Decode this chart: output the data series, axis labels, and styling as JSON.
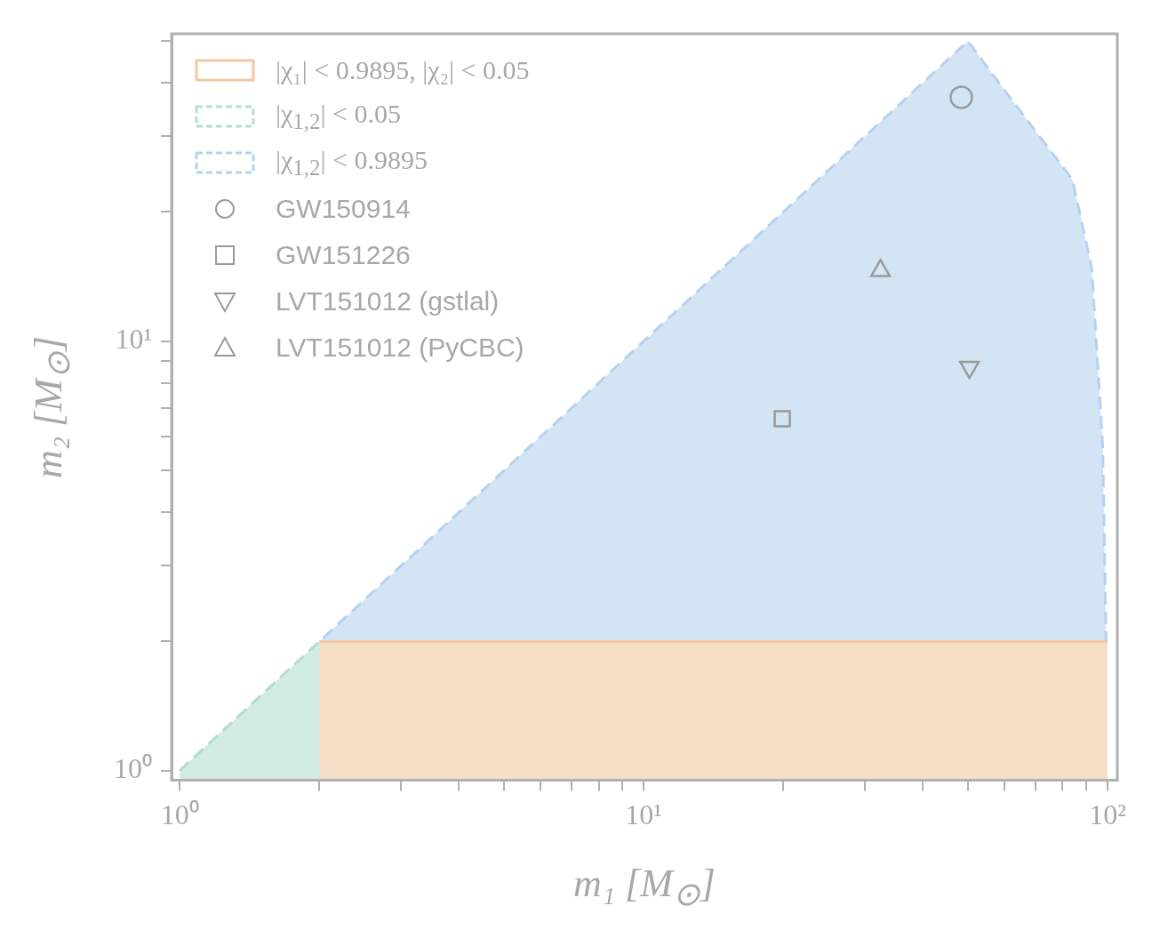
{
  "chart_data": {
    "type": "area",
    "xlabel": "m₁ [M$_{⊙}$]",
    "ylabel": "m₂ [M$_{⊙}$]",
    "log": "xy",
    "grid": false,
    "legend": "top left",
    "xlim": [
      0.96,
      105
    ],
    "ylim": [
      0.95,
      52
    ],
    "xticks": [
      {
        "value": 1,
        "label": "10⁰"
      },
      {
        "value": 2,
        "label": null
      },
      {
        "value": 3,
        "label": null
      },
      {
        "value": 4,
        "label": null
      },
      {
        "value": 5,
        "label": null
      },
      {
        "value": 6,
        "label": null
      },
      {
        "value": 7,
        "label": null
      },
      {
        "value": 8,
        "label": null
      },
      {
        "value": 9,
        "label": null
      },
      {
        "value": 10,
        "label": "10¹"
      },
      {
        "value": 20,
        "label": null
      },
      {
        "value": 30,
        "label": null
      },
      {
        "value": 40,
        "label": null
      },
      {
        "value": 50,
        "label": null
      },
      {
        "value": 60,
        "label": null
      },
      {
        "value": 70,
        "label": null
      },
      {
        "value": 80,
        "label": null
      },
      {
        "value": 90,
        "label": null
      },
      {
        "value": 100,
        "label": "10²"
      }
    ],
    "yticks": [
      {
        "value": 1,
        "label": "10⁰"
      },
      {
        "value": 2,
        "label": null
      },
      {
        "value": 3,
        "label": null
      },
      {
        "value": 4,
        "label": null
      },
      {
        "value": 5,
        "label": null
      },
      {
        "value": 6,
        "label": null
      },
      {
        "value": 7,
        "label": null
      },
      {
        "value": 8,
        "label": null
      },
      {
        "value": 9,
        "label": null
      },
      {
        "value": 10,
        "label": "10¹"
      },
      {
        "value": 20,
        "label": null
      },
      {
        "value": 30,
        "label": null
      },
      {
        "value": 40,
        "label": null
      },
      {
        "value": 50,
        "label": null
      }
    ],
    "series": [
      {
        "name": "|χ₁| < 0.9895, |χ₂| < 0.05",
        "type": "area",
        "color": "#f0c8a2",
        "line_style": "solid",
        "x": [
          2,
          100
        ],
        "values": [
          2,
          2
        ]
      },
      {
        "name": "|χ$_{1,2}$| < 0.05",
        "type": "area",
        "color": "#b4dfca",
        "line_style": "dashed",
        "x": [
          1,
          2
        ],
        "values": [
          1,
          2
        ]
      },
      {
        "name": "|χ$_{1,2}$| < 0.9895",
        "type": "area",
        "color": "#b6d2ee",
        "line_style": "dashed",
        "x": [
          1,
          2,
          50,
          60,
          84,
          92.5,
          97.7,
          99.3
        ],
        "values": [
          1,
          2,
          50,
          38.4,
          23.8,
          14.8,
          5.66,
          2
        ]
      },
      {
        "name": "GW150914",
        "type": "scatter",
        "color": "#9a9a9a",
        "marker": "circle",
        "x": [
          48.4
        ],
        "values": [
          37
        ]
      },
      {
        "name": "GW151226",
        "type": "scatter",
        "color": "#9a9a9a",
        "marker": "square",
        "x": [
          19.9
        ],
        "values": [
          6.6
        ]
      },
      {
        "name": "LVT151012 (gstlal)",
        "type": "scatter",
        "color": "#9a9a9a",
        "marker": "triangle-down",
        "x": [
          50.4
        ],
        "values": [
          8.7
        ]
      },
      {
        "name": "LVT151012 (PyCBC)",
        "type": "scatter",
        "color": "#9a9a9a",
        "marker": "triangle",
        "x": [
          32.4
        ],
        "values": [
          14.6
        ]
      }
    ]
  }
}
